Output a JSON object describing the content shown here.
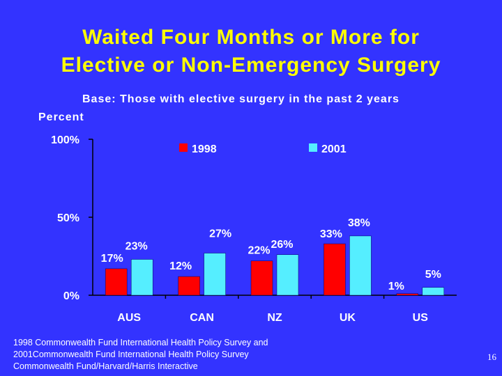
{
  "slide": {
    "title_line1": "Waited Four Months or More for",
    "title_line2": "Elective or Non-Emergency Surgery",
    "subtitle": "Base:  Those with elective surgery in the past 2 years",
    "source_line1": "1998 Commonwealth Fund International Health Policy Survey and",
    "source_line2": "2001Commonwealth Fund International Health Policy Survey",
    "source_line3": "Commonwealth Fund/Harvard/Harris Interactive",
    "page_number": "16"
  },
  "chart_data": {
    "type": "bar",
    "title": "Waited Four Months or More for Elective or Non-Emergency Surgery",
    "ylabel": "Percent",
    "xlabel": "",
    "ylim": [
      0,
      100
    ],
    "yticks": [
      0,
      50,
      100
    ],
    "ytick_labels": [
      "0%",
      "50%",
      "100%"
    ],
    "categories": [
      "AUS",
      "CAN",
      "NZ",
      "UK",
      "US"
    ],
    "series": [
      {
        "name": "1998",
        "color": "#FF0000",
        "values": [
          17,
          12,
          22,
          33,
          1
        ],
        "labels": [
          "17%",
          "12%",
          "22%",
          "33%",
          "1%"
        ]
      },
      {
        "name": "2001",
        "color": "#55EEFF",
        "values": [
          23,
          27,
          26,
          38,
          5
        ],
        "labels": [
          "23%",
          "27%",
          "26%",
          "38%",
          "5%"
        ]
      }
    ],
    "legend_position": "top",
    "grid": false
  },
  "colors": {
    "background": "#3333FF",
    "title": "#FFFF00",
    "text": "#FFFFFF",
    "axis": "#000000"
  }
}
